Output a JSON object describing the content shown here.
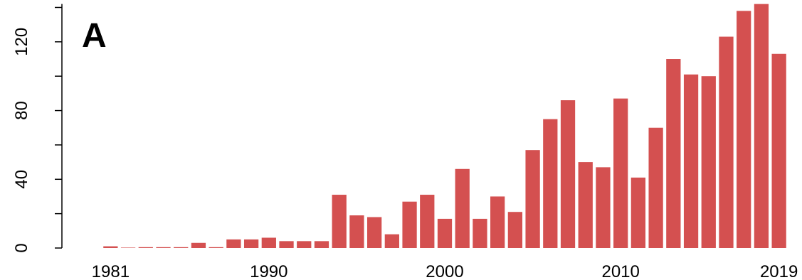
{
  "panel_label": "A",
  "chart_data": {
    "type": "bar",
    "title": "",
    "xlabel": "",
    "ylabel": "",
    "color": "#d45050",
    "ylim": [
      0,
      142
    ],
    "y_ticks": [
      0,
      40,
      80,
      120
    ],
    "x_tick_labels": [
      "1981",
      "1990",
      "2000",
      "2010",
      "2019"
    ],
    "categories": [
      1981,
      1982,
      1983,
      1984,
      1985,
      1986,
      1987,
      1988,
      1989,
      1990,
      1991,
      1992,
      1993,
      1994,
      1995,
      1996,
      1997,
      1998,
      1999,
      2000,
      2001,
      2002,
      2003,
      2004,
      2005,
      2006,
      2007,
      2008,
      2009,
      2010,
      2011,
      2012,
      2013,
      2014,
      2015,
      2016,
      2017,
      2018,
      2019
    ],
    "values": [
      1,
      0,
      0.5,
      0.5,
      0.5,
      3,
      0.5,
      5,
      5,
      6,
      4,
      4,
      4,
      31,
      19,
      18,
      8,
      27,
      31,
      17,
      46,
      17,
      30,
      21,
      57,
      75,
      86,
      50,
      47,
      87,
      41,
      70,
      110,
      101,
      100,
      123,
      138,
      142,
      113
    ]
  }
}
